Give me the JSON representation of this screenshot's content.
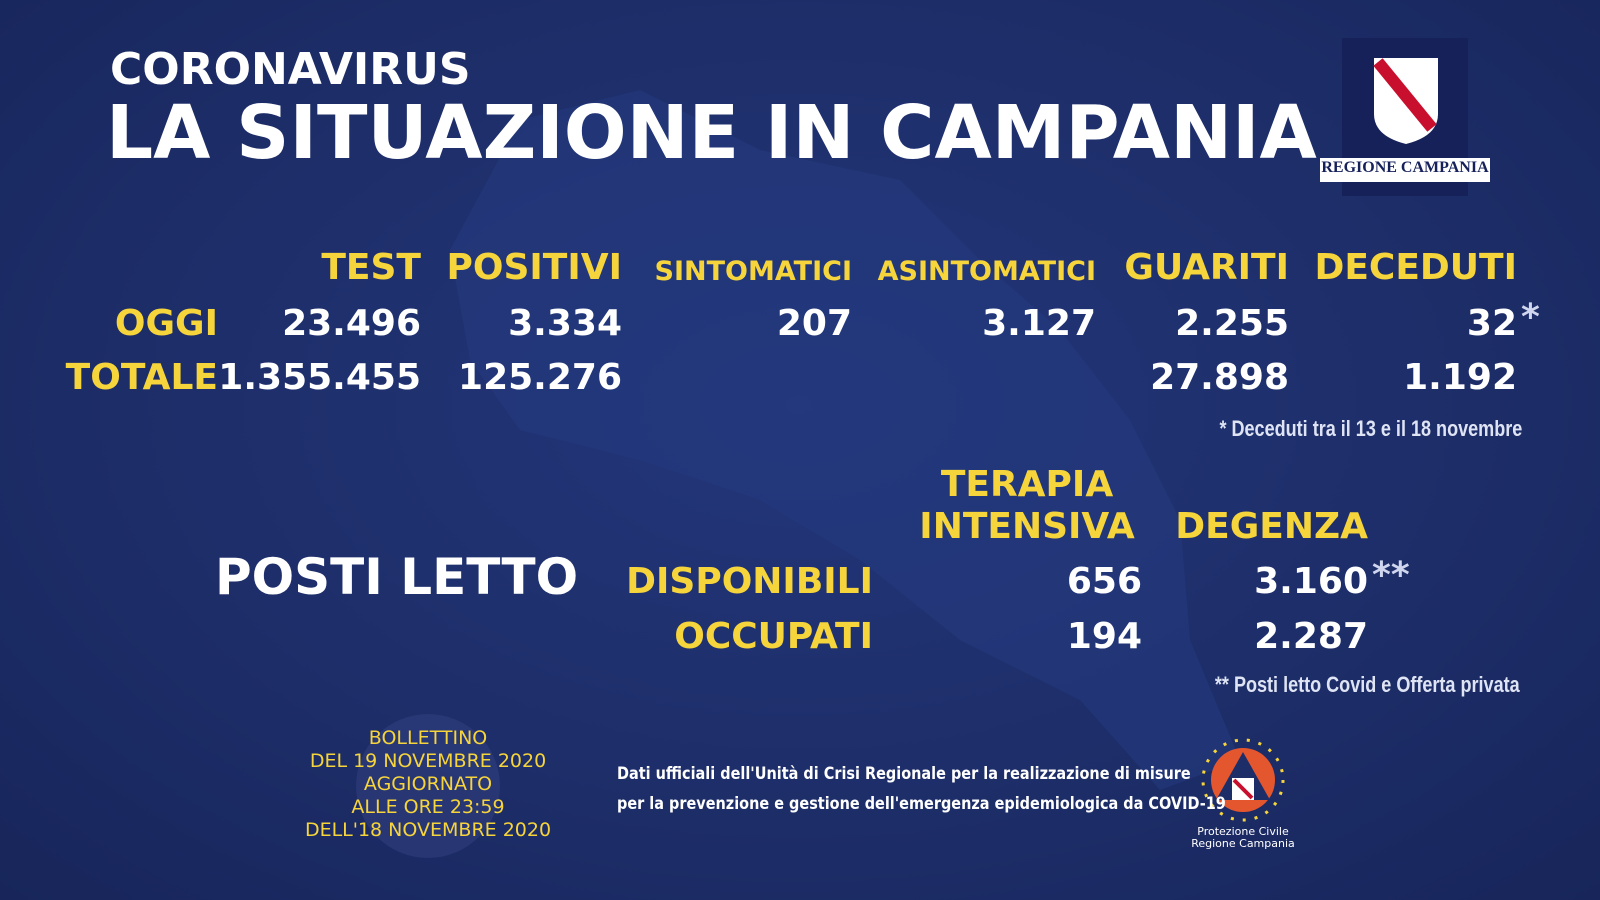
{
  "header": {
    "kicker": "CORONAVIRUS",
    "title": "LA SITUAZIONE IN CAMPANIA"
  },
  "logo": {
    "text": "REGIONE CAMPANIA"
  },
  "cases": {
    "columns": [
      "TEST",
      "POSITIVI",
      "SINTOMATICI",
      "ASINTOMATICI",
      "GUARITI",
      "DECEDUTI"
    ],
    "rows": [
      {
        "label": "OGGI",
        "values": [
          "23.496",
          "3.334",
          "207",
          "3.127",
          "2.255",
          "32"
        ],
        "marker": "*"
      },
      {
        "label": "TOTALE",
        "values": [
          "1.355.455",
          "125.276",
          null,
          null,
          "27.898",
          "1.192"
        ]
      }
    ],
    "footnote": "* Deceduti tra il 13 e il 18 novembre"
  },
  "beds": {
    "title": "POSTI LETTO",
    "columns": [
      "TERAPIA INTENSIVA",
      "DEGENZA"
    ],
    "rows": [
      {
        "label": "DISPONIBILI",
        "values": [
          "656",
          "3.160"
        ],
        "marker": "**"
      },
      {
        "label": "OCCUPATI",
        "values": [
          "194",
          "2.287"
        ]
      }
    ],
    "footnote": "** Posti letto Covid e Offerta privata"
  },
  "bulletin": [
    "BOLLETTINO",
    "DEL 19 NOVEMBRE 2020",
    "AGGIORNATO",
    "ALLE ORE 23:59",
    "DELL'18 NOVEMBRE 2020"
  ],
  "source": [
    "Dati ufficiali dell'Unità di Crisi Regionale per la realizzazione di misure",
    "per la prevenzione e gestione dell'emergenza epidemiologica da COVID-19"
  ],
  "civil_protection": [
    "Protezione Civile",
    "Regione Campania"
  ]
}
